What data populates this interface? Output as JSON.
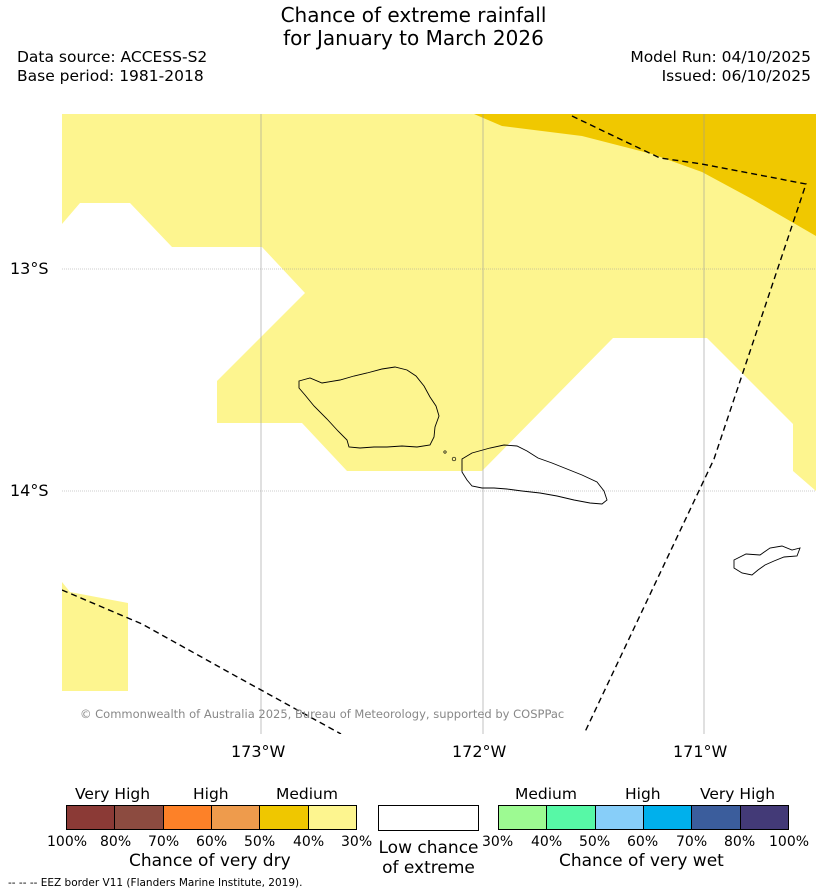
{
  "title": {
    "line1": "Chance of extreme rainfall",
    "line2": "for January to March 2026"
  },
  "meta": {
    "data_source": "Data source: ACCESS-S2",
    "base_period": "Base period: 1981-2018",
    "model_run": "Model Run: 04/10/2025",
    "issued": "Issued: 06/10/2025"
  },
  "map": {
    "lat_labels": [
      "13°S",
      "14°S"
    ],
    "lon_labels": [
      "173°W",
      "172°W",
      "171°W"
    ],
    "copyright": "© Commonwealth of Australia 2025, Bureau of Meteorology, supported by COSPPac",
    "colors": {
      "medium_dry": "#f0c800",
      "low_dry": "#fdf58f",
      "coast": "#000000",
      "grid": "#999999"
    }
  },
  "legend": {
    "dry": {
      "groups": [
        "Very High",
        "High",
        "Medium"
      ],
      "ticks": [
        "100%",
        "80%",
        "70%",
        "60%",
        "50%",
        "40%",
        "30%"
      ],
      "title": "Chance of very dry",
      "colors": [
        "#8b3a36",
        "#8c4b40",
        "#fd8128",
        "#ee9b4c",
        "#efc700",
        "#fdf58f"
      ]
    },
    "neutral": {
      "title_line1": "Low chance",
      "title_line2": "of extreme",
      "color": "#ffffff"
    },
    "wet": {
      "groups": [
        "Medium",
        "High",
        "Very High"
      ],
      "ticks": [
        "30%",
        "40%",
        "50%",
        "60%",
        "70%",
        "80%",
        "100%"
      ],
      "title": "Chance of very wet",
      "colors": [
        "#9dfa92",
        "#57f8a6",
        "#87cef9",
        "#00b0ec",
        "#3b5d9c",
        "#433a77"
      ]
    }
  },
  "footnote": "--  --  -- EEZ border V11 (Flanders Marine Institute, 2019)."
}
